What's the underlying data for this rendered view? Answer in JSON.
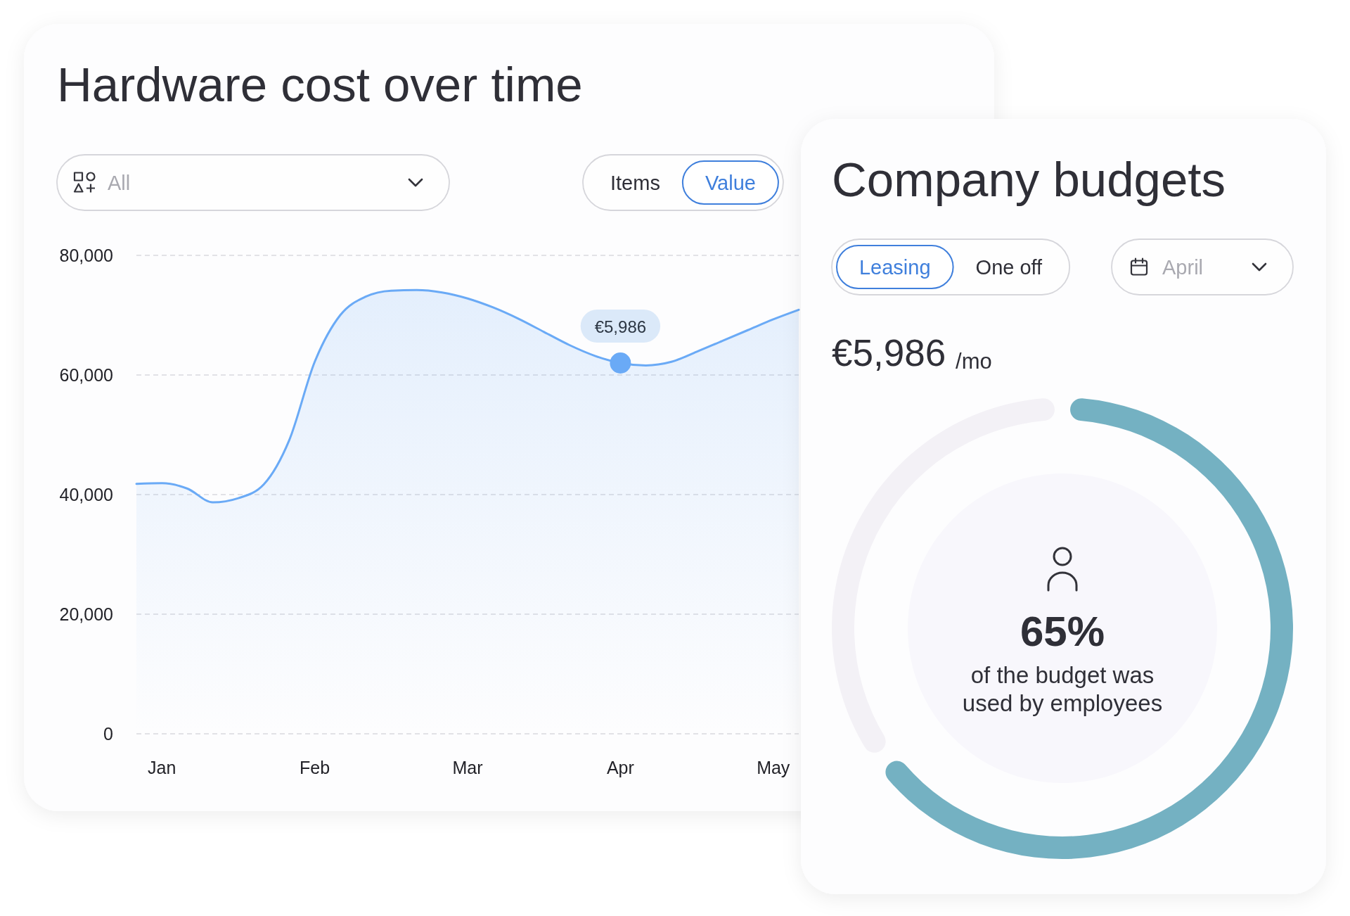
{
  "chart_data": [
    {
      "type": "area",
      "title": "Hardware cost over time",
      "annotations": [
        "All",
        "Items",
        "Value",
        {
          "text": "€5,986",
          "x": "Apr",
          "y": 62000
        }
      ],
      "categories": [
        null,
        "Jan",
        null,
        null,
        null,
        null,
        null,
        "Feb",
        null,
        null,
        null,
        null,
        null,
        "Mar",
        null,
        null,
        null,
        null,
        null,
        "Apr",
        null,
        null,
        null,
        null,
        null,
        "May",
        null
      ],
      "ylim": [
        0,
        80000
      ],
      "yticks": [
        0,
        {
          "value": 20000,
          "label": "20,000"
        },
        {
          "value": 40000,
          "label": "40,000"
        },
        {
          "value": 60000,
          "label": "60,000"
        },
        {
          "value": 80000,
          "label": "80,000"
        }
      ],
      "grid": "y",
      "series": [
        {
          "type": "area",
          "color": "#6aaaf6",
          "values": [
            41800,
            41900,
            41000,
            38700,
            39400,
            41700,
            49100,
            62200,
            70000,
            73100,
            74100,
            74200,
            73800,
            72800,
            71300,
            69400,
            67200,
            65000,
            63200,
            62000,
            61600,
            62200,
            63900,
            65700,
            67500,
            69300,
            70900
          ]
        },
        {
          "type": "scatter",
          "color": "#6aaaf6",
          "values": [
            null,
            null,
            null,
            null,
            null,
            null,
            null,
            null,
            null,
            null,
            null,
            null,
            null,
            null,
            null,
            null,
            null,
            null,
            null,
            62000,
            null,
            null,
            null,
            null,
            null,
            null,
            null
          ]
        }
      ]
    },
    {
      "type": "donut",
      "title": "Company budgets",
      "categories": [
        null,
        null
      ],
      "values": [
        65,
        35
      ],
      "colors": [
        "#74b1c2",
        "#f3f1f6"
      ],
      "annotations": [
        "Leasing",
        "One off",
        "April",
        "€5,986",
        "/mo",
        "65%",
        "of the budget was used by employees"
      ]
    }
  ]
}
